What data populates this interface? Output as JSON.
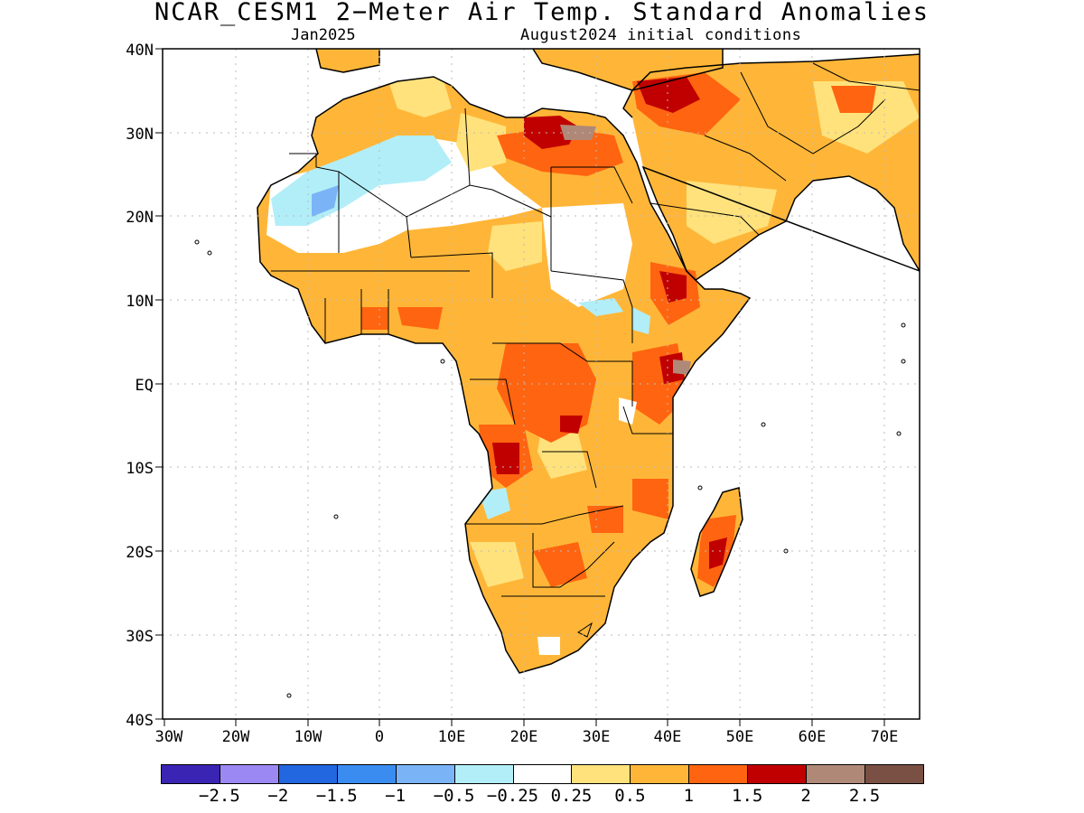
{
  "title": "NCAR_CESM1 2−Meter Air Temp. Standard Anomalies",
  "subtitle_left": "Jan2025",
  "subtitle_right": "August2024 initial conditions",
  "lat_labels": [
    "40N",
    "30N",
    "20N",
    "10N",
    "EQ",
    "10S",
    "20S",
    "30S",
    "40S"
  ],
  "lon_labels": [
    "30W",
    "20W",
    "10W",
    "0",
    "10E",
    "20E",
    "30E",
    "40E",
    "50E",
    "60E",
    "70E"
  ],
  "legend": {
    "colors": [
      "#3a24b4",
      "#9b88f2",
      "#2266e0",
      "#3b8cf0",
      "#7ab4f6",
      "#b2eef8",
      "#ffffff",
      "#ffe27c",
      "#ffb638",
      "#ff6410",
      "#c00000",
      "#b08878",
      "#7a5044"
    ],
    "labels": [
      "−2.5",
      "−2",
      "−1.5",
      "−1",
      "−0.5",
      "−0.25",
      "0.25",
      "0.5",
      "1",
      "1.5",
      "2",
      "2.5"
    ]
  },
  "colors": {
    "ocean": "#ffffff",
    "coast": "#000000",
    "grid": "#bbbbbb"
  }
}
